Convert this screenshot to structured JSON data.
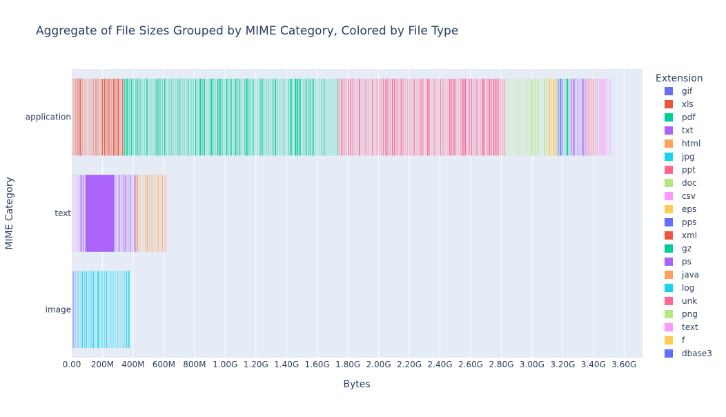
{
  "chart_data": {
    "type": "bar",
    "orientation": "horizontal",
    "barmode": "stack",
    "title": "Aggregate of File Sizes Grouped by MIME Category, Colored by File Type",
    "xlabel": "Bytes",
    "ylabel": "MIME Category",
    "xlim": [
      0,
      3.72
    ],
    "x_unit": "G (billions of bytes)",
    "x_ticks": [
      {
        "value": 0.0,
        "label": "0.00"
      },
      {
        "value": 0.2,
        "label": "200M"
      },
      {
        "value": 0.4,
        "label": "400M"
      },
      {
        "value": 0.6,
        "label": "600M"
      },
      {
        "value": 0.8,
        "label": "800M"
      },
      {
        "value": 1.0,
        "label": "1.00G"
      },
      {
        "value": 1.2,
        "label": "1.20G"
      },
      {
        "value": 1.4,
        "label": "1.40G"
      },
      {
        "value": 1.6,
        "label": "1.60G"
      },
      {
        "value": 1.8,
        "label": "1.80G"
      },
      {
        "value": 2.0,
        "label": "2.00G"
      },
      {
        "value": 2.2,
        "label": "2.20G"
      },
      {
        "value": 2.4,
        "label": "2.40G"
      },
      {
        "value": 2.6,
        "label": "2.60G"
      },
      {
        "value": 2.8,
        "label": "2.80G"
      },
      {
        "value": 3.0,
        "label": "3.00G"
      },
      {
        "value": 3.2,
        "label": "3.20G"
      },
      {
        "value": 3.4,
        "label": "3.40G"
      },
      {
        "value": 3.6,
        "label": "3.60G"
      }
    ],
    "categories": [
      "image",
      "text",
      "application"
    ],
    "grid": true,
    "legend": {
      "title": "Extension",
      "placement": "right",
      "entries": [
        {
          "name": "gif",
          "color": "#636efa"
        },
        {
          "name": "xls",
          "color": "#EF553B"
        },
        {
          "name": "pdf",
          "color": "#00cc96"
        },
        {
          "name": "txt",
          "color": "#ab63fa"
        },
        {
          "name": "html",
          "color": "#FFA15A"
        },
        {
          "name": "jpg",
          "color": "#19d3f3"
        },
        {
          "name": "ppt",
          "color": "#FF6692"
        },
        {
          "name": "doc",
          "color": "#B6E880"
        },
        {
          "name": "csv",
          "color": "#FF97FF"
        },
        {
          "name": "eps",
          "color": "#FECB52"
        },
        {
          "name": "pps",
          "color": "#636efa"
        },
        {
          "name": "xml",
          "color": "#EF553B"
        },
        {
          "name": "gz",
          "color": "#00cc96"
        },
        {
          "name": "ps",
          "color": "#ab63fa"
        },
        {
          "name": "java",
          "color": "#FFA15A"
        },
        {
          "name": "log",
          "color": "#19d3f3"
        },
        {
          "name": "unk",
          "color": "#FF6692"
        },
        {
          "name": "png",
          "color": "#B6E880"
        },
        {
          "name": "text",
          "color": "#FF97FF"
        },
        {
          "name": "f",
          "color": "#FECB52"
        },
        {
          "name": "dbase3",
          "color": "#636efa"
        }
      ]
    },
    "series": [
      {
        "category": "image",
        "segments": [
          {
            "ext": "gif",
            "start": 0.0,
            "end": 0.03
          },
          {
            "ext": "jpg",
            "start": 0.03,
            "end": 0.376
          }
        ]
      },
      {
        "category": "text",
        "segments": [
          {
            "ext": "csv",
            "start": 0.0,
            "end": 0.035
          },
          {
            "ext": "txt",
            "start": 0.035,
            "end": 0.415
          },
          {
            "ext": "html",
            "start": 0.415,
            "end": 0.54
          },
          {
            "ext": "java",
            "start": 0.54,
            "end": 0.61
          },
          {
            "ext": "text",
            "start": 0.61,
            "end": 0.615
          }
        ]
      },
      {
        "category": "application",
        "segments": [
          {
            "ext": "xls",
            "start": 0.0,
            "end": 0.335
          },
          {
            "ext": "pdf",
            "start": 0.335,
            "end": 1.735
          },
          {
            "ext": "ppt",
            "start": 1.735,
            "end": 2.825
          },
          {
            "ext": "doc",
            "start": 2.825,
            "end": 3.1
          },
          {
            "ext": "eps",
            "start": 3.1,
            "end": 3.16
          },
          {
            "ext": "pps",
            "start": 3.16,
            "end": 3.205
          },
          {
            "ext": "gz",
            "start": 3.205,
            "end": 3.245
          },
          {
            "ext": "ps",
            "start": 3.245,
            "end": 3.35
          },
          {
            "ext": "unk",
            "start": 3.35,
            "end": 3.43
          },
          {
            "ext": "text",
            "start": 3.43,
            "end": 3.515
          }
        ]
      }
    ]
  }
}
